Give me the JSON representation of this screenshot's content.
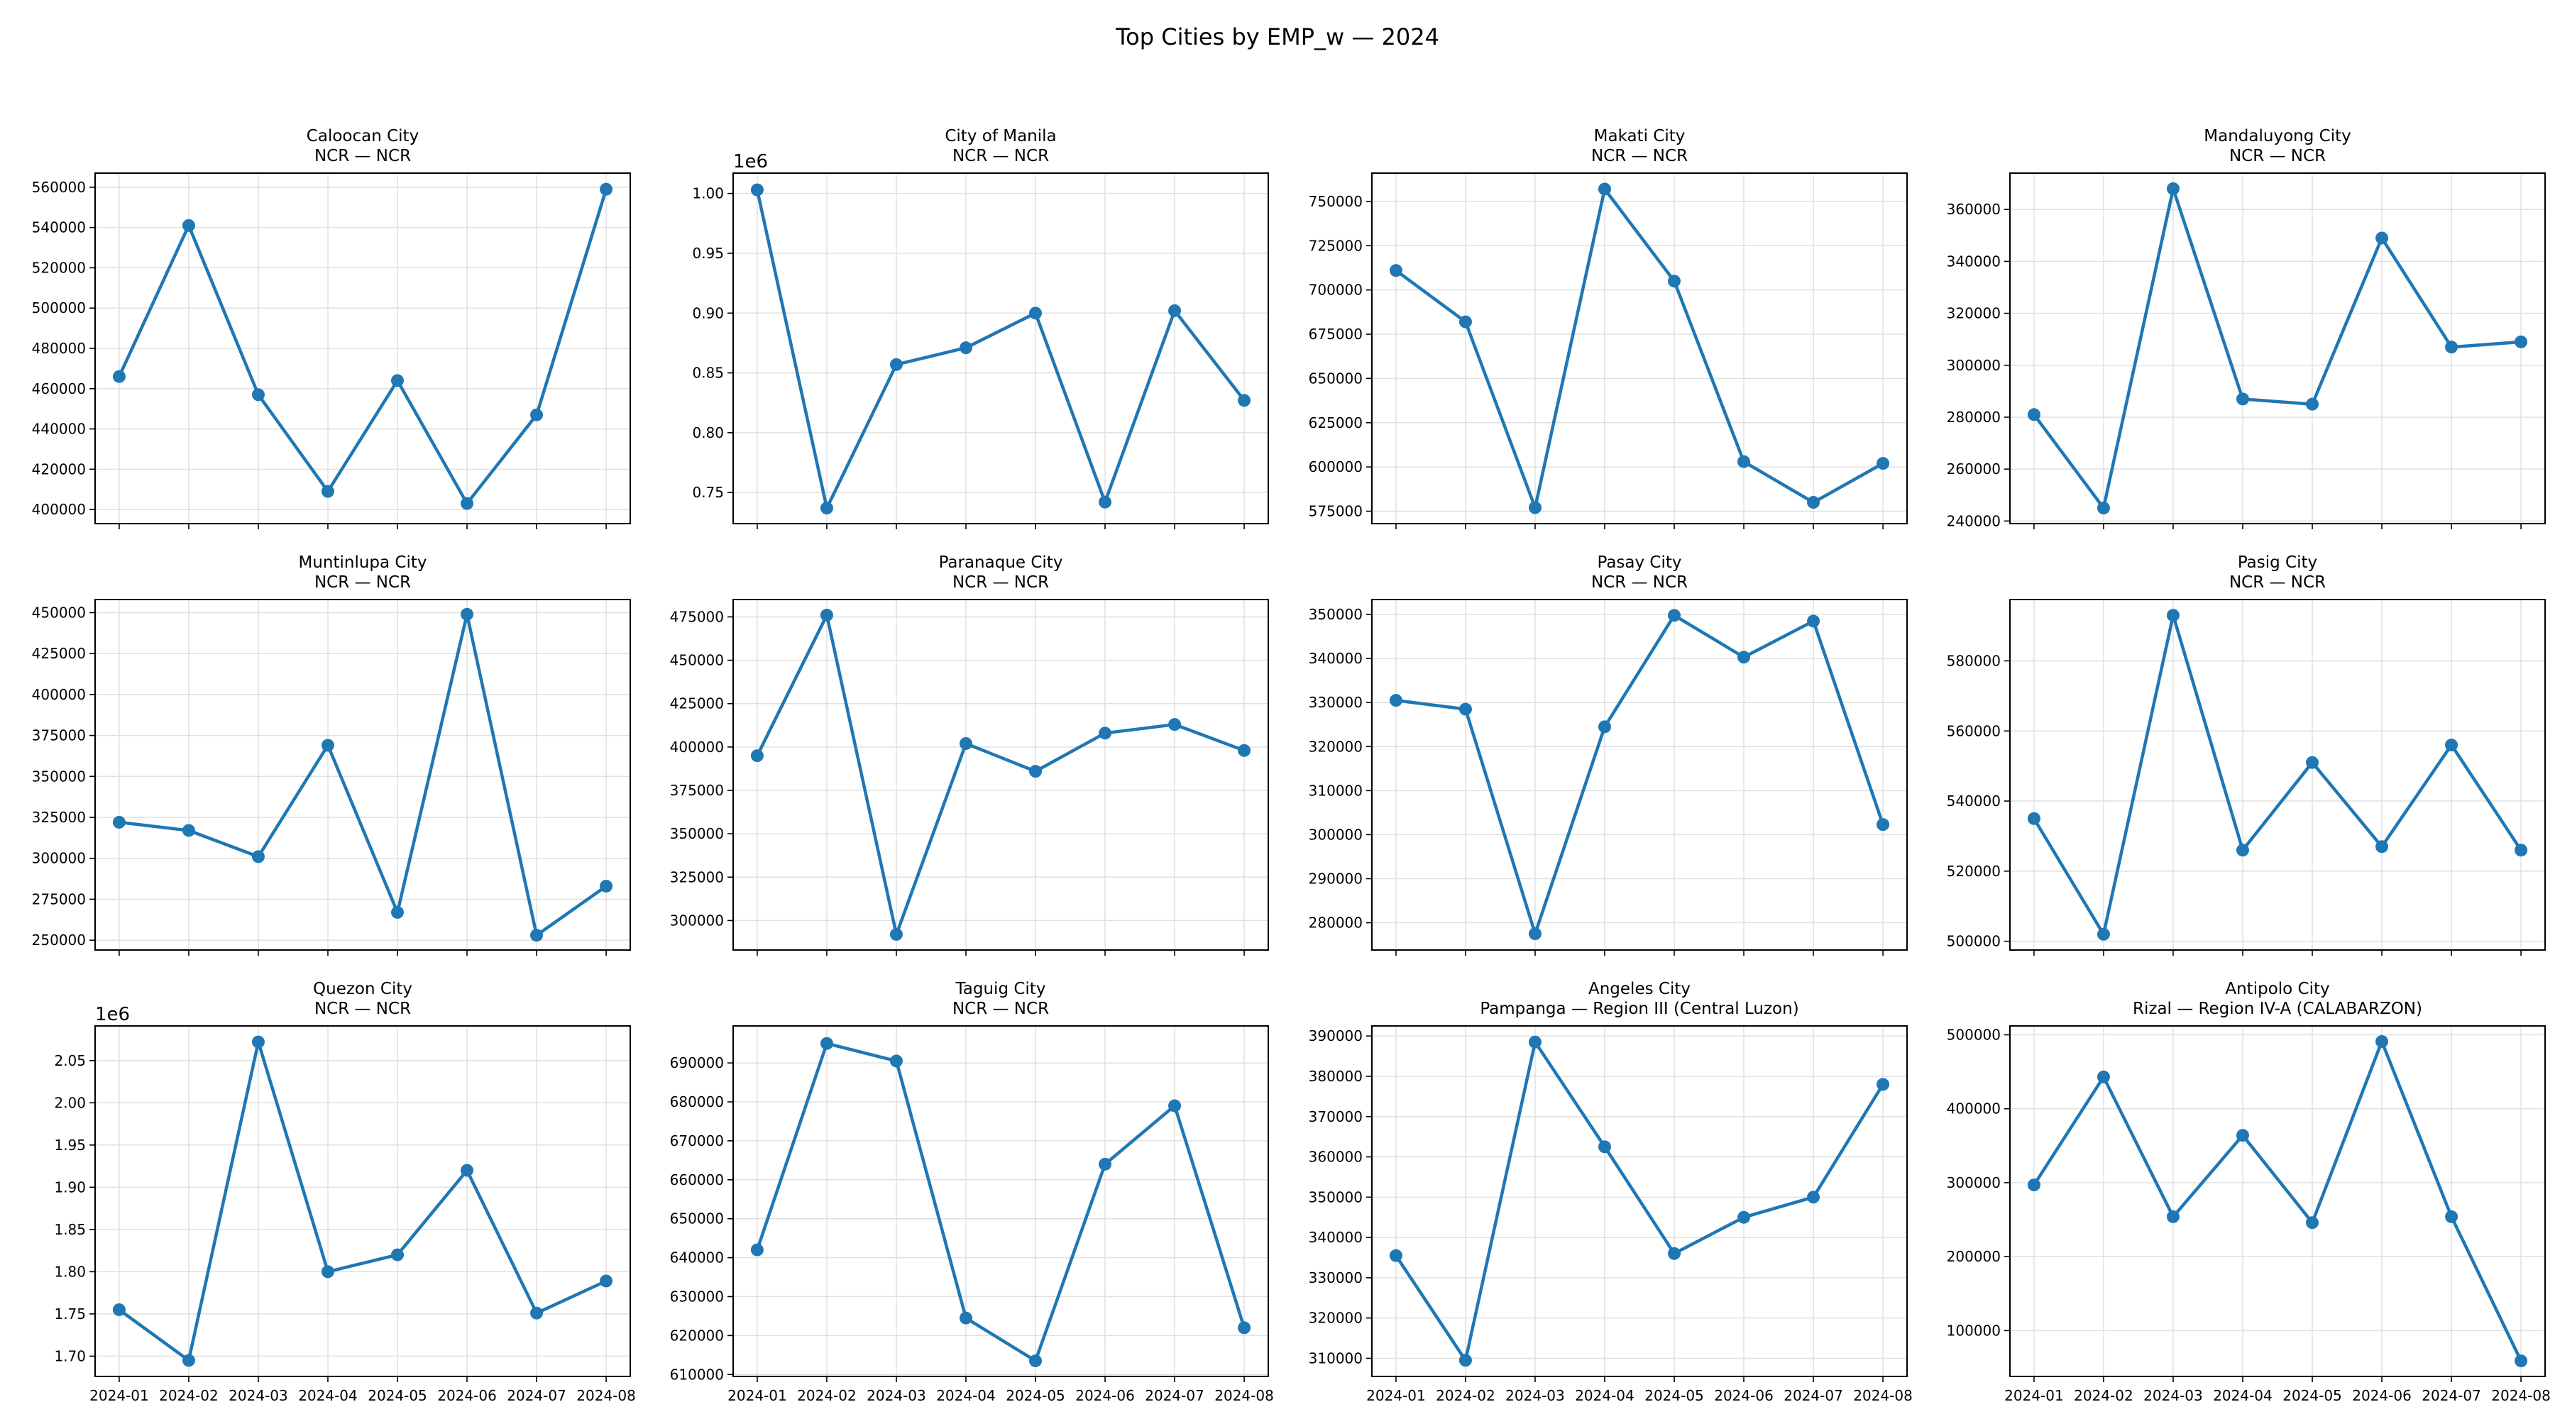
{
  "figure": {
    "title": "Top Cities by EMP_w — 2024"
  },
  "x_categories": [
    "2024-01",
    "2024-02",
    "2024-03",
    "2024-04",
    "2024-05",
    "2024-06",
    "2024-07",
    "2024-08"
  ],
  "colors": {
    "series": "#1f77b4",
    "grid": "#e0e0e0"
  },
  "chart_data": [
    {
      "type": "line",
      "title": "Caloocan City",
      "subtitle": "NCR — NCR",
      "values": [
        466000,
        541000,
        457000,
        409000,
        464000,
        403000,
        447000,
        559000
      ],
      "ylim": [
        393000,
        567000
      ],
      "yticks": [
        400000,
        420000,
        440000,
        460000,
        480000,
        500000,
        520000,
        540000,
        560000
      ],
      "ytick_labels": [
        "400000",
        "420000",
        "440000",
        "460000",
        "480000",
        "500000",
        "520000",
        "540000",
        "560000"
      ],
      "offset": "",
      "show_xlabels": false,
      "grid": true
    },
    {
      "type": "line",
      "title": "City of Manila",
      "subtitle": "NCR — NCR",
      "values": [
        1003000,
        737000,
        857000,
        871000,
        900000,
        742000,
        902000,
        827000
      ],
      "ylim": [
        0.724,
        1.017
      ],
      "yticks": [
        0.75,
        0.8,
        0.85,
        0.9,
        0.95,
        1.0
      ],
      "ytick_labels": [
        "0.75",
        "0.80",
        "0.85",
        "0.90",
        "0.95",
        "1.00"
      ],
      "offset": "1e6",
      "scale": 1000000,
      "show_xlabels": false,
      "grid": true
    },
    {
      "type": "line",
      "title": "Makati City",
      "subtitle": "NCR — NCR",
      "values": [
        711000,
        682000,
        577000,
        757000,
        705000,
        603000,
        580000,
        602000
      ],
      "ylim": [
        568000,
        766000
      ],
      "yticks": [
        575000,
        600000,
        625000,
        650000,
        675000,
        700000,
        725000,
        750000
      ],
      "ytick_labels": [
        "575000",
        "600000",
        "625000",
        "650000",
        "675000",
        "700000",
        "725000",
        "750000"
      ],
      "offset": "",
      "show_xlabels": false,
      "grid": true
    },
    {
      "type": "line",
      "title": "Mandaluyong City",
      "subtitle": "NCR — NCR",
      "values": [
        281000,
        245000,
        368000,
        287000,
        285000,
        349000,
        307000,
        309000
      ],
      "ylim": [
        239000,
        374000
      ],
      "yticks": [
        240000,
        260000,
        280000,
        300000,
        320000,
        340000,
        360000
      ],
      "ytick_labels": [
        "240000",
        "260000",
        "280000",
        "300000",
        "320000",
        "340000",
        "360000"
      ],
      "offset": "",
      "show_xlabels": false,
      "grid": true
    },
    {
      "type": "line",
      "title": "Muntinlupa City",
      "subtitle": "NCR — NCR",
      "values": [
        322000,
        317000,
        301000,
        369000,
        267000,
        449000,
        253000,
        283000
      ],
      "ylim": [
        244000,
        458000
      ],
      "yticks": [
        250000,
        275000,
        300000,
        325000,
        350000,
        375000,
        400000,
        425000,
        450000
      ],
      "ytick_labels": [
        "250000",
        "275000",
        "300000",
        "325000",
        "350000",
        "375000",
        "400000",
        "425000",
        "450000"
      ],
      "offset": "",
      "show_xlabels": false,
      "grid": true
    },
    {
      "type": "line",
      "title": "Paranaque City",
      "subtitle": "NCR — NCR",
      "values": [
        395000,
        476000,
        292000,
        402000,
        386000,
        408000,
        413000,
        398000
      ],
      "ylim": [
        283000,
        485000
      ],
      "yticks": [
        300000,
        325000,
        350000,
        375000,
        400000,
        425000,
        450000,
        475000
      ],
      "ytick_labels": [
        "300000",
        "325000",
        "350000",
        "375000",
        "400000",
        "425000",
        "450000",
        "475000"
      ],
      "offset": "",
      "show_xlabels": false,
      "grid": true
    },
    {
      "type": "line",
      "title": "Pasay City",
      "subtitle": "NCR — NCR",
      "values": [
        330500,
        328500,
        277500,
        324500,
        349800,
        340300,
        348500,
        302300
      ],
      "ylim": [
        273800,
        353400
      ],
      "yticks": [
        280000,
        290000,
        300000,
        310000,
        320000,
        330000,
        340000,
        350000
      ],
      "ytick_labels": [
        "280000",
        "290000",
        "300000",
        "310000",
        "320000",
        "330000",
        "340000",
        "350000"
      ],
      "offset": "",
      "show_xlabels": false,
      "grid": true
    },
    {
      "type": "line",
      "title": "Pasig City",
      "subtitle": "NCR — NCR",
      "values": [
        535000,
        502000,
        593000,
        526000,
        551000,
        527000,
        556000,
        526000
      ],
      "ylim": [
        497500,
        597500
      ],
      "yticks": [
        500000,
        520000,
        540000,
        560000,
        580000
      ],
      "ytick_labels": [
        "500000",
        "520000",
        "540000",
        "560000",
        "580000"
      ],
      "offset": "",
      "show_xlabels": false,
      "grid": true
    },
    {
      "type": "line",
      "title": "Quezon City",
      "subtitle": "NCR — NCR",
      "values": [
        1755000,
        1695000,
        2072000,
        1800000,
        1820000,
        1920000,
        1751000,
        1789000
      ],
      "ylim": [
        1.676,
        2.091
      ],
      "yticks": [
        1.7,
        1.75,
        1.8,
        1.85,
        1.9,
        1.95,
        2.0,
        2.05
      ],
      "ytick_labels": [
        "1.70",
        "1.75",
        "1.80",
        "1.85",
        "1.90",
        "1.95",
        "2.00",
        "2.05"
      ],
      "offset": "1e6",
      "scale": 1000000,
      "show_xlabels": true,
      "grid": true
    },
    {
      "type": "line",
      "title": "Taguig City",
      "subtitle": "NCR — NCR",
      "values": [
        642000,
        695000,
        690500,
        624500,
        613500,
        664000,
        679000,
        622000
      ],
      "ylim": [
        609500,
        699500
      ],
      "yticks": [
        610000,
        620000,
        630000,
        640000,
        650000,
        660000,
        670000,
        680000,
        690000
      ],
      "ytick_labels": [
        "610000",
        "620000",
        "630000",
        "640000",
        "650000",
        "660000",
        "670000",
        "680000",
        "690000"
      ],
      "offset": "",
      "show_xlabels": true,
      "grid": true
    },
    {
      "type": "line",
      "title": "Angeles City",
      "subtitle": "Pampanga — Region III (Central Luzon)",
      "values": [
        335500,
        309500,
        388500,
        362500,
        336000,
        345000,
        350000,
        378000
      ],
      "ylim": [
        305500,
        392500
      ],
      "yticks": [
        310000,
        320000,
        330000,
        340000,
        350000,
        360000,
        370000,
        380000,
        390000
      ],
      "ytick_labels": [
        "310000",
        "320000",
        "330000",
        "340000",
        "350000",
        "360000",
        "370000",
        "380000",
        "390000"
      ],
      "offset": "",
      "show_xlabels": true,
      "grid": true
    },
    {
      "type": "line",
      "title": "Antipolo City",
      "subtitle": "Rizal — Region IV-A (CALABARZON)",
      "values": [
        297000,
        443000,
        254000,
        364000,
        246000,
        491000,
        254000,
        59000
      ],
      "ylim": [
        38000,
        512000
      ],
      "yticks": [
        100000,
        200000,
        300000,
        400000,
        500000
      ],
      "ytick_labels": [
        "100000",
        "200000",
        "300000",
        "400000",
        "500000"
      ],
      "offset": "",
      "show_xlabels": true,
      "grid": true
    }
  ]
}
